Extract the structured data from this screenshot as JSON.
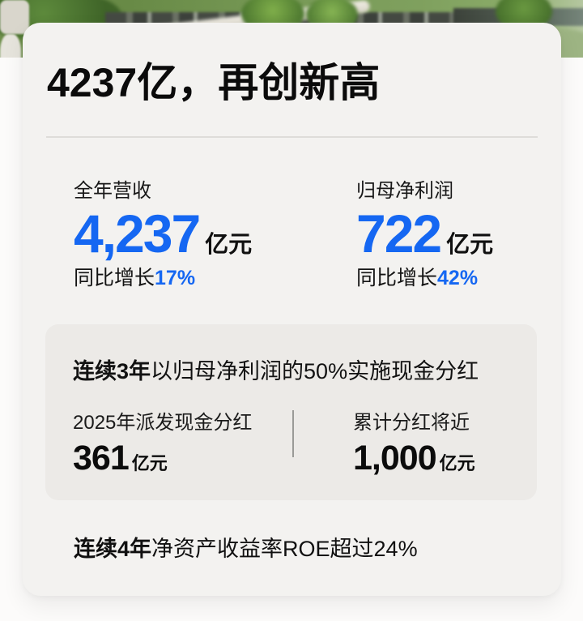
{
  "page": {
    "title": "4237亿，再创新高"
  },
  "stats": [
    {
      "label": "全年营收",
      "value": "4,237",
      "unit": "亿元",
      "growth_prefix": "同比增长",
      "growth_value": "17%"
    },
    {
      "label": "归母净利润",
      "value": "722",
      "unit": "亿元",
      "growth_prefix": "同比增长",
      "growth_value": "42%"
    }
  ],
  "dividend_box": {
    "title_bold": "连续3年",
    "title_rest": "以归母净利润的50%实施现金分红",
    "items": [
      {
        "label": "2025年派发现金分红",
        "value": "361",
        "unit": "亿元"
      },
      {
        "label": "累计分红将近",
        "value": "1,000",
        "unit": "亿元"
      }
    ]
  },
  "footer": {
    "bold": "连续4年",
    "rest": "净资产收益率ROE超过24%"
  },
  "colors": {
    "accent_blue": "#1567F2",
    "card_background": "#F3F2F0",
    "box_background": "#ECEAE7"
  }
}
